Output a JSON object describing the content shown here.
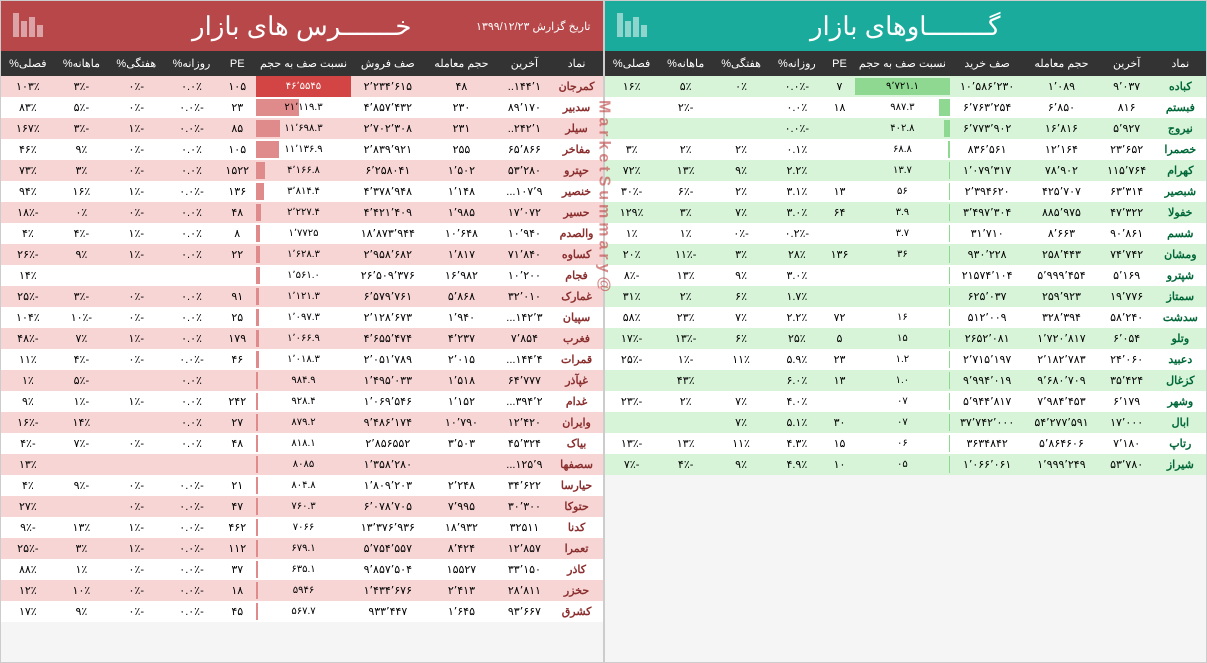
{
  "watermark": "@MarketSummary",
  "bulls": {
    "title": "گــــــــاوهای بازار",
    "report_date": "",
    "columns": [
      "نماد",
      "آخرین",
      "حجم معامله",
      "صف خرید",
      "نسبت صف به حجم",
      "PE",
      "روزانه%",
      "هفتگی%",
      "ماهانه%",
      "فصلی%"
    ],
    "rows": [
      {
        "sym": "کباده",
        "last": "۹٬۰۳۷",
        "vol": "۱٬۰۸۹",
        "queue": "۱۰٬۵۸۶٬۲۳۰",
        "ratio": "۹٬۷۲۱.۱",
        "pe": "۷",
        "d": "-۰.۰٪",
        "w": "۰٪",
        "m": "۵٪",
        "q": "۱۶٪",
        "bar": 100
      },
      {
        "sym": "فبستم",
        "last": "۸۱۶",
        "vol": "۶٬۸۵۰",
        "queue": "۶٬۷۶۳٬۲۵۴",
        "ratio": "۹۸۷.۳",
        "pe": "۱۸",
        "d": "۰.۰٪",
        "w": "",
        "m": "-۲٪",
        "q": "",
        "bar": 12
      },
      {
        "sym": "نیروج",
        "last": "۵٬۹۲۷",
        "vol": "۱۶٬۸۱۶",
        "queue": "۶٬۷۷۳٬۹۰۲",
        "ratio": "۴۰۲.۸",
        "pe": "",
        "d": "-۰.۰٪",
        "w": "",
        "m": "",
        "q": "",
        "bar": 6
      },
      {
        "sym": "خصمرا",
        "last": "۲۳٬۶۵۲",
        "vol": "۱۲٬۱۶۴",
        "queue": "۸۳۶٬۵۶۱",
        "ratio": "۶۸.۸",
        "pe": "",
        "d": "۰.۱٪",
        "w": "۲٪",
        "m": "۲٪",
        "q": "۳٪",
        "bar": 2
      },
      {
        "sym": "کهرام",
        "last": "۱۱۵٬۷۶۴",
        "vol": "۷۸٬۹۰۲",
        "queue": "۱٬۰۷۹٬۳۱۷",
        "ratio": "۱۳.۷",
        "pe": "",
        "d": "۲.۲٪",
        "w": "۹٪",
        "m": "۱۳٪",
        "q": "۷۲٪",
        "bar": 1
      },
      {
        "sym": "شبصیر",
        "last": "۶۳٬۳۱۴",
        "vol": "۴۲۵٬۷۰۷",
        "queue": "۲٬۳۹۴۶۲۰",
        "ratio": "۵۶",
        "pe": "۱۳",
        "d": "۳.۱٪",
        "w": "۲٪",
        "m": "-۶٪",
        "q": "-۳۰٪",
        "bar": 1
      },
      {
        "sym": "خفولا",
        "last": "۴۷٬۳۲۲",
        "vol": "۸۸۵٬۹۷۵",
        "queue": "۳٬۴۹۷٬۳۰۴",
        "ratio": "۳.۹",
        "pe": "۶۴",
        "d": "۳.۰٪",
        "w": "۷٪",
        "m": "۳٪",
        "q": "۱۲۹٪",
        "bar": 1
      },
      {
        "sym": "شسم",
        "last": "۹۰٬۸۶۱",
        "vol": "۸٬۶۶۳",
        "queue": "۳۱٬۷۱۰",
        "ratio": "۳.۷",
        "pe": "",
        "d": "-۰.۲٪",
        "w": "-۰٪",
        "m": "۱٪",
        "q": "۱٪",
        "bar": 1
      },
      {
        "sym": "ومشان",
        "last": "۷۴٬۷۴۲",
        "vol": "۲۵۸٬۴۴۳",
        "queue": "۹۳۰٬۲۲۸",
        "ratio": "۳۶",
        "pe": "۱۳۶",
        "d": "۲۸٪",
        "w": "۳٪",
        "m": "-۱۱٪",
        "q": "۲۰٪",
        "bar": 1
      },
      {
        "sym": "شپترو",
        "last": "۵٬۱۶۹",
        "vol": "۵٬۹۹۹٬۴۵۴",
        "queue": "۲۱۵۷۴٬۱۰۴",
        "ratio": "",
        "pe": "",
        "d": "۳.۰٪",
        "w": "۹٪",
        "m": "۱۳٪",
        "q": "-۸٪",
        "bar": 1
      },
      {
        "sym": "سمتاز",
        "last": "۱۹٬۷۷۶",
        "vol": "۲۵۹٬۹۲۳",
        "queue": "۶۲۵٬۰۳۷",
        "ratio": "",
        "pe": "",
        "d": "۱.۷٪",
        "w": "۶٪",
        "m": "۲٪",
        "q": "۳۱٪",
        "bar": 1
      },
      {
        "sym": "سدشت",
        "last": "۵۸٬۲۴۰",
        "vol": "۳۲۸٬۳۹۴",
        "queue": "۵۱۲٬۰۰۹",
        "ratio": "۱۶",
        "pe": "۷۲",
        "d": "۲.۲٪",
        "w": "۷٪",
        "m": "۲۳٪",
        "q": "۵۸٪",
        "bar": 1
      },
      {
        "sym": "وتلو",
        "last": "۶٬۰۵۴",
        "vol": "۱٬۷۲۰٬۸۱۷",
        "queue": "۲۶۵۲٬۰۸۱",
        "ratio": "۱۵",
        "pe": "۵",
        "d": "۲۵٪",
        "w": "۶٪",
        "m": "-۱۳٪",
        "q": "-۱۷٪",
        "bar": 1
      },
      {
        "sym": "دعبید",
        "last": "۲۴٬۰۶۰",
        "vol": "۲٬۱۸۲٬۷۸۳",
        "queue": "۲٬۷۱۵٬۱۹۷",
        "ratio": "۱.۲",
        "pe": "۲۳",
        "d": "۵.۹٪",
        "w": "۱۱٪",
        "m": "-۱٪",
        "q": "-۲۵٪",
        "bar": 1
      },
      {
        "sym": "کزغال",
        "last": "۳۵٬۴۲۴",
        "vol": "۹٬۶۸۰٬۷۰۹",
        "queue": "۹٬۹۹۴٬۰۱۹",
        "ratio": "۱.۰",
        "pe": "۱۳",
        "d": "۶.۰٪",
        "w": "",
        "m": "۴۳٪",
        "q": "",
        "bar": 1
      },
      {
        "sym": "وشهر",
        "last": "۶٬۱۷۹",
        "vol": "۷٬۹۸۴٬۴۵۳",
        "queue": "۵٬۹۴۴٬۸۱۷",
        "ratio": "۰۷",
        "pe": "",
        "d": "۴.۰٪",
        "w": "۷٪",
        "m": "۲٪",
        "q": "-۲۳٪",
        "bar": 1
      },
      {
        "sym": "ابال",
        "last": "۱۷٬۰۰۰",
        "vol": "۵۴٬۲۷۷٬۵۹۱",
        "queue": "۳۷٬۷۴۲٬۰۰۰",
        "ratio": "۰۷",
        "pe": "۳۰",
        "d": "۵.۱٪",
        "w": "۷٪",
        "m": "",
        "q": "",
        "bar": 1
      },
      {
        "sym": "رتاپ",
        "last": "۷٬۱۸۰",
        "vol": "۵٬۸۶۴۶۰۶",
        "queue": "۳۶۳۴۸۴۲",
        "ratio": "۰۶",
        "pe": "۱۵",
        "d": "۴.۳٪",
        "w": "۱۱٪",
        "m": "۱۳٪",
        "q": "-۱۳٪",
        "bar": 1
      },
      {
        "sym": "شیراز",
        "last": "۵۳٬۷۸۰",
        "vol": "۱٬۹۹۹٬۲۴۹",
        "queue": "۱٬۰۶۶٬۰۶۱",
        "ratio": "۰۵",
        "pe": "۱۰",
        "d": "۴.۹٪",
        "w": "۹٪",
        "m": "-۴٪",
        "q": "-۷٪",
        "bar": 1
      }
    ]
  },
  "bears": {
    "title": "خـــــــرس های بازار",
    "report_date": "تاریخ گزارش ۱۳۹۹/۱۲/۲۳",
    "columns": [
      "نماد",
      "آخرین",
      "حجم معامله",
      "صف فروش",
      "نسبت صف به حجم",
      "PE",
      "روزانه%",
      "هفتگی%",
      "ماهانه%",
      "فصلی%"
    ],
    "rows": [
      {
        "sym": "کمرجان",
        "last": "۱۴۴٬۱..",
        "vol": "۴۸",
        "queue": "۲٬۲۳۴٬۶۱۵",
        "ratio": "۴۶٬۵۵۴۵",
        "pe": "۱۰۵",
        "d": "۰.۰٪",
        "w": "-۰٪",
        "m": "-۳٪",
        "q": "۱۰۳٪",
        "bar": 100,
        "hot": true
      },
      {
        "sym": "سدبیر",
        "last": "۸۹٬۱۷۰",
        "vol": "۲۳۰",
        "queue": "۴٬۸۵۷٬۴۳۲",
        "ratio": "۲۱٬۱۱۹.۳",
        "pe": "۲۳",
        "d": "-۰.۰٪",
        "w": "-۰٪",
        "m": "-۵٪",
        "q": "۸۳٪",
        "bar": 45
      },
      {
        "sym": "سیلر",
        "last": "۲۴۲٬۱..",
        "vol": "۲۳۱",
        "queue": "۲٬۷۰۲٬۳۰۸",
        "ratio": "۱۱٬۶۹۸.۳",
        "pe": "۸۵",
        "d": "-۰.۰٪",
        "w": "-۱٪",
        "m": "-۳٪",
        "q": "۱۶۷٪",
        "bar": 25
      },
      {
        "sym": "مفاخر",
        "last": "۶۵٬۸۶۶",
        "vol": "۲۵۵",
        "queue": "۲٬۸۳۹٬۹۲۱",
        "ratio": "۱۱٬۱۳۶.۹",
        "pe": "۱۰۵",
        "d": "۰.۰٪",
        "w": "-۰٪",
        "m": "۹٪",
        "q": "۴۶٪",
        "bar": 24
      },
      {
        "sym": "حپترو",
        "last": "۵۳٬۲۸۰",
        "vol": "۱٬۵۰۲",
        "queue": "۶٬۲۵۸۰۴۱",
        "ratio": "۴٬۱۶۶.۸",
        "pe": "۱۵۲۲",
        "d": "۰.۰٪",
        "w": "-۰٪",
        "m": "۳٪",
        "q": "۷۳٪",
        "bar": 10
      },
      {
        "sym": "خنصیر",
        "last": "۱۰۷٬۹...",
        "vol": "۱٬۱۴۸",
        "queue": "۴٬۳۷۸٬۹۴۸",
        "ratio": "۳٬۸۱۴.۴",
        "pe": "۱۳۶",
        "d": "-۰.۰٪",
        "w": "-۱٪",
        "m": "۱۶٪",
        "q": "۹۴٪",
        "bar": 9
      },
      {
        "sym": "حسیر",
        "last": "۱۷٬۰۷۲",
        "vol": "۱٬۹۸۵",
        "queue": "۴٬۴۲۱٬۴۰۹",
        "ratio": "۲٬۲۲۷.۴",
        "pe": "۴۸",
        "d": "۰.۰٪",
        "w": "-۰٪",
        "m": "۰٪",
        "q": "-۱۸٪",
        "bar": 5
      },
      {
        "sym": "والصدم",
        "last": "۱۰٬۹۴۰",
        "vol": "۱۰٬۶۴۸",
        "queue": "۱۸٬۸۷۳٬۹۴۴",
        "ratio": "۱٬۷۷۲۵",
        "pe": "۸",
        "d": "۰.۰٪",
        "w": "-۱٪",
        "m": "-۴٪",
        "q": "۴٪",
        "bar": 4
      },
      {
        "sym": "کساوه",
        "last": "۷۱٬۸۴۰",
        "vol": "۱٬۸۱۷",
        "queue": "۲٬۹۵۸٬۶۸۲",
        "ratio": "۱٬۶۲۸.۳",
        "pe": "۲۲",
        "d": "۰.۰٪",
        "w": "-۱٪",
        "m": "۹٪",
        "q": "-۲۶٪",
        "bar": 4
      },
      {
        "sym": "فجام",
        "last": "۱۰٬۲۰۰",
        "vol": "۱۶٬۹۸۲",
        "queue": "۲۶٬۵۰۹٬۳۷۶",
        "ratio": "۱٬۵۶۱.۰",
        "pe": "",
        "d": "",
        "w": "",
        "m": "",
        "q": "۱۴٪",
        "bar": 4
      },
      {
        "sym": "غمارک",
        "last": "۳۲٬۰۱۰",
        "vol": "۵٬۸۶۸",
        "queue": "۶٬۵۷۹٬۷۶۱",
        "ratio": "۱٬۱۲۱.۳",
        "pe": "۹۱",
        "d": "۰.۰٪",
        "w": "-۰٪",
        "m": "-۳٪",
        "q": "-۲۵٪",
        "bar": 3
      },
      {
        "sym": "سپیان",
        "last": "۱۴۲٬۳...",
        "vol": "۱٬۹۴۰",
        "queue": "۲٬۱۲۸٬۶۷۳",
        "ratio": "۱٬۰۹۷.۳",
        "pe": "۲۵",
        "d": "۰.۰٪",
        "w": "-۰٪",
        "m": "-۱۰٪",
        "q": "۱۰۴٪",
        "bar": 3
      },
      {
        "sym": "فغرب",
        "last": "۷٬۸۵۴",
        "vol": "۴٬۲۳۷",
        "queue": "۴٬۶۵۵٬۴۷۴",
        "ratio": "۱٬۰۶۶.۹",
        "pe": "۱۷۹",
        "d": "۰.۰٪",
        "w": "-۱٪",
        "m": "۷٪",
        "q": "-۴۸٪",
        "bar": 3
      },
      {
        "sym": "قمرات",
        "last": "۱۴۴٬۴...",
        "vol": "۲٬۰۱۵",
        "queue": "۲٬۰۵۱٬۷۸۹",
        "ratio": "۱٬۰۱۸.۳",
        "pe": "۴۶",
        "d": "-۰.۰٪",
        "w": "-۰٪",
        "m": "-۴٪",
        "q": "۱۱٪",
        "bar": 3
      },
      {
        "sym": "غپآذر",
        "last": "۶۴٬۷۷۷",
        "vol": "۱٬۵۱۸",
        "queue": "۱٬۴۹۵٬۰۳۳",
        "ratio": "۹۸۴.۹",
        "pe": "",
        "d": "۰.۰٪",
        "w": "",
        "m": "-۵٪",
        "q": "۱٪",
        "bar": 2
      },
      {
        "sym": "غدام",
        "last": "۳۹۴٬۲...",
        "vol": "۱٬۱۵۲",
        "queue": "۱٬۰۶۹٬۵۴۶",
        "ratio": "۹۲۸.۴",
        "pe": "۲۴۲",
        "d": "۰.۰٪",
        "w": "-۱٪",
        "m": "-۱٪",
        "q": "۹٪",
        "bar": 2
      },
      {
        "sym": "وایران",
        "last": "۱۲٬۴۲۰",
        "vol": "۱۰٬۷۹۰",
        "queue": "۹٬۴۸۶٬۱۷۴",
        "ratio": "۸۷۹.۲",
        "pe": "۲۷",
        "d": "۰.۰٪",
        "w": "",
        "m": "۱۴٪",
        "q": "-۱۶٪",
        "bar": 2
      },
      {
        "sym": "بیاک",
        "last": "۴۵٬۳۲۴",
        "vol": "۳٬۵۰۳",
        "queue": "۲٬۸۵۶۵۵۲",
        "ratio": "۸۱۸.۱",
        "pe": "۴۸",
        "d": "۰.۰٪",
        "w": "-۰٪",
        "m": "-۷٪",
        "q": "-۴٪",
        "bar": 2
      },
      {
        "sym": "سصفها",
        "last": "۱۲۵٬۹...",
        "vol": "",
        "queue": "۱٬۳۵۸٬۲۸۰",
        "ratio": "۸۰۸۵",
        "pe": "",
        "d": "",
        "w": "",
        "m": "",
        "q": "۱۳٪",
        "bar": 2
      },
      {
        "sym": "حیارسا",
        "last": "۳۴٬۶۲۲",
        "vol": "۲٬۲۴۸",
        "queue": "۱٬۸۰۹٬۲۰۳",
        "ratio": "۸۰۴.۸",
        "pe": "۲۱",
        "d": "-۰.۰٪",
        "w": "-۰٪",
        "m": "-۹٪",
        "q": "۴٪",
        "bar": 2
      },
      {
        "sym": "حتوکا",
        "last": "۳۰٬۳۰۰",
        "vol": "۷٬۹۹۵",
        "queue": "۶٬۰۷۸٬۷۰۵",
        "ratio": "۷۶۰.۳",
        "pe": "۴۷",
        "d": "-۰.۰٪",
        "w": "-۰٪",
        "m": "",
        "q": "۲۷٪",
        "bar": 2
      },
      {
        "sym": "کدنا",
        "last": "۳۲۵۱۱",
        "vol": "۱۸٬۹۳۲",
        "queue": "۱۳٬۳۷۶٬۹۳۶",
        "ratio": "۷۰۶۶",
        "pe": "۴۶۲",
        "d": "-۰.۰٪",
        "w": "-۱٪",
        "m": "۱۳٪",
        "q": "-۹٪",
        "bar": 2
      },
      {
        "sym": "تعمرا",
        "last": "۱۲٬۸۵۷",
        "vol": "۸٬۴۲۴",
        "queue": "۵٬۷۵۴٬۵۵۷",
        "ratio": "۶۷۹.۱",
        "pe": "۱۱۲",
        "d": "-۰.۰٪",
        "w": "-۱٪",
        "m": "۳٪",
        "q": "-۲۵٪",
        "bar": 2
      },
      {
        "sym": "کاذر",
        "last": "۳۳٬۱۵۰",
        "vol": "۱۵۵۲۷",
        "queue": "۹٬۸۵۷٬۵۰۴",
        "ratio": "۶۳۵.۱",
        "pe": "۳۷",
        "d": "-۰.۰٪",
        "w": "-۰٪",
        "m": "۱٪",
        "q": "۸۸٪",
        "bar": 2
      },
      {
        "sym": "حخزر",
        "last": "۲۸٬۸۱۱",
        "vol": "۲٬۴۱۳",
        "queue": "۱٬۴۳۴٬۶۷۶",
        "ratio": "۵۹۴۶",
        "pe": "۱۸",
        "d": "-۰.۰٪",
        "w": "-۰٪",
        "m": "۱۰٪",
        "q": "۱۲٪",
        "bar": 2
      },
      {
        "sym": "کشرق",
        "last": "۹۳٬۶۶۷",
        "vol": "۱٬۶۴۵",
        "queue": "۹۳۳٬۴۴۷",
        "ratio": "۵۶۷.۷",
        "pe": "۴۵",
        "d": "-۰.۰٪",
        "w": "-۰٪",
        "m": "۹٪",
        "q": "۱۷٪",
        "bar": 2
      }
    ]
  }
}
